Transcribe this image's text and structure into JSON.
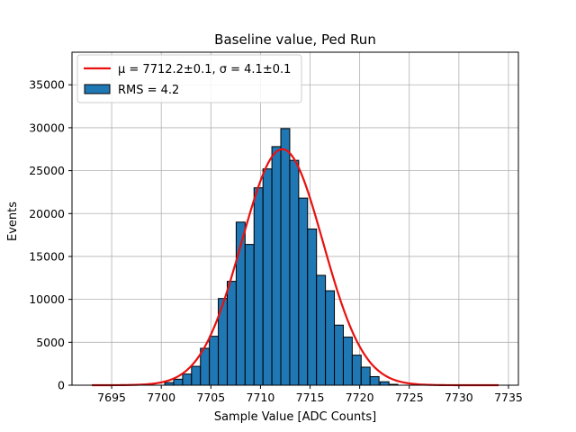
{
  "chart_data": {
    "type": "bar",
    "title": "Baseline value, Ped Run",
    "xlabel": "Sample Value [ADC Counts]",
    "ylabel": "Events",
    "xlim": [
      7691,
      7736
    ],
    "ylim": [
      0,
      38800
    ],
    "xticks": [
      7695,
      7700,
      7705,
      7710,
      7715,
      7720,
      7725,
      7730,
      7735
    ],
    "yticks": [
      0,
      5000,
      10000,
      15000,
      20000,
      25000,
      30000,
      35000
    ],
    "grid": true,
    "legend_position": "top-left",
    "bin_width": 0.9,
    "bin_left_edges": [
      7700.35,
      7701.25,
      7702.15,
      7703.05,
      7703.95,
      7704.85,
      7705.75,
      7706.65,
      7707.55,
      7708.45,
      7709.35,
      7710.25,
      7711.15,
      7712.05,
      7712.95,
      7713.85,
      7714.75,
      7715.65,
      7716.55,
      7717.45,
      7718.35,
      7719.25,
      7720.15,
      7721.05,
      7722.05,
      7722.95
    ],
    "bin_counts": [
      300,
      700,
      1300,
      2200,
      4300,
      5700,
      10100,
      12100,
      19000,
      16400,
      23000,
      25200,
      27800,
      29900,
      26200,
      21800,
      18200,
      12800,
      11000,
      7000,
      5600,
      3500,
      2100,
      1000,
      400,
      100
    ],
    "series": [
      {
        "name": "RMS = 4.2",
        "kind": "histogram",
        "color": "#1f77b4",
        "edgecolor": "#000000"
      },
      {
        "name": "$\\mu = 7712.2\\pm0.1$, $\\sigma = 4.1\\pm0.1$",
        "display_name": "μ = 7712.2±0.1, σ = 4.1±0.1",
        "kind": "gaussian-fit",
        "color": "#e8110f",
        "x_range": [
          7693,
          7734
        ],
        "amplitude": 27500,
        "mean": 7712.2,
        "sigma": 4.1
      }
    ]
  }
}
